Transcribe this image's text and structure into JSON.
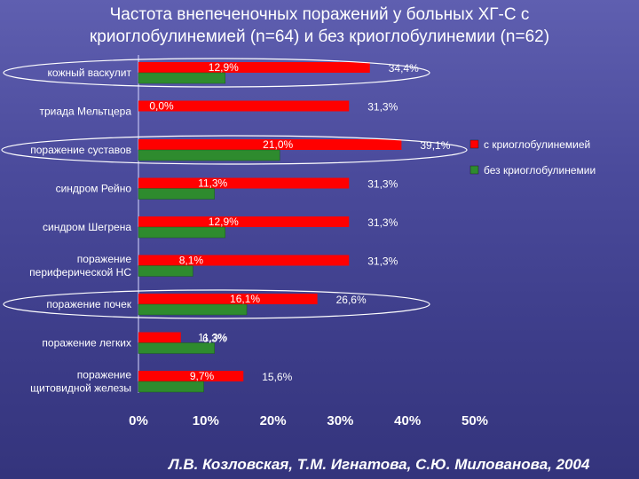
{
  "title": {
    "line1": "Частота внепеченочных поражений у больных ХГ-С с",
    "line2": "криоглобулинемией (n=64) и без криоглобулинемии (n=62)"
  },
  "footer": "Л.В. Козловская, Т.М. Игнатова, С.Ю. Милованова, 2004",
  "colors": {
    "with_cryo": "#ff0000",
    "without_cryo": "#2e8b2e",
    "text": "#ffffff",
    "ellipse": "#ffffff"
  },
  "chart_data": {
    "type": "bar",
    "orientation": "horizontal",
    "categories": [
      [
        "кожный васкулит"
      ],
      [
        "триада Мельтцера"
      ],
      [
        "поражение суставов"
      ],
      [
        "синдром Рейно"
      ],
      [
        "синдром Шегрена"
      ],
      [
        "поражение",
        "периферической НС"
      ],
      [
        "поражение почек"
      ],
      [
        "поражение легких"
      ],
      [
        "поражение",
        "щитовидной железы"
      ]
    ],
    "series": [
      {
        "name": "с криоглобулинемией",
        "values": [
          34.4,
          31.3,
          39.1,
          31.3,
          31.3,
          31.3,
          26.6,
          6.3,
          15.6
        ],
        "labels": [
          "34,4%",
          "31,3%",
          "39,1%",
          "31,3%",
          "31,3%",
          "31,3%",
          "26,6%",
          "6,3%",
          "15,6%"
        ]
      },
      {
        "name": "без криоглобулинемии",
        "values": [
          12.9,
          0.0,
          21.0,
          11.3,
          12.9,
          8.1,
          16.1,
          11.3,
          9.7
        ],
        "labels": [
          "12,9%",
          "0,0%",
          "21,0%",
          "11,3%",
          "12,9%",
          "8,1%",
          "16,1%",
          "11,3%",
          "9,7%"
        ]
      }
    ],
    "xlim": [
      0,
      50
    ],
    "xticks": [
      "0%",
      "10%",
      "20%",
      "30%",
      "40%",
      "50%"
    ],
    "legend_position": "right",
    "highlighted_categories": [
      0,
      2,
      6
    ]
  }
}
